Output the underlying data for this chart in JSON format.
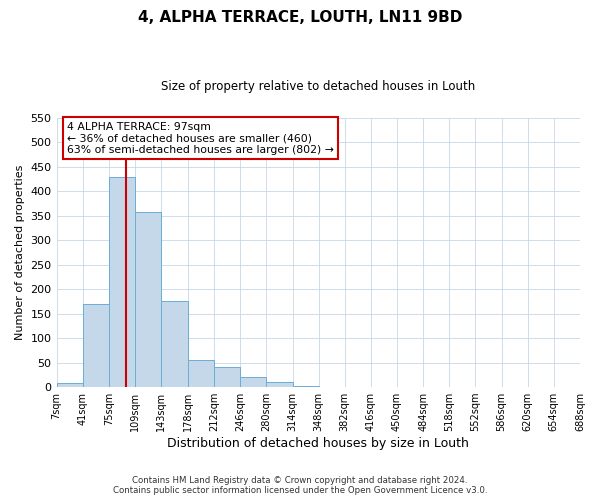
{
  "title": "4, ALPHA TERRACE, LOUTH, LN11 9BD",
  "subtitle": "Size of property relative to detached houses in Louth",
  "xlabel": "Distribution of detached houses by size in Louth",
  "ylabel": "Number of detached properties",
  "bin_edges": [
    7,
    41,
    75,
    109,
    143,
    178,
    212,
    246,
    280,
    314,
    348,
    382,
    416,
    450,
    484,
    518,
    552,
    586,
    620,
    654,
    688
  ],
  "bin_labels": [
    "7sqm",
    "41sqm",
    "75sqm",
    "109sqm",
    "143sqm",
    "178sqm",
    "212sqm",
    "246sqm",
    "280sqm",
    "314sqm",
    "348sqm",
    "382sqm",
    "416sqm",
    "450sqm",
    "484sqm",
    "518sqm",
    "552sqm",
    "586sqm",
    "620sqm",
    "654sqm",
    "688sqm"
  ],
  "counts": [
    8,
    170,
    430,
    357,
    175,
    55,
    40,
    21,
    10,
    2,
    1,
    0,
    0,
    0,
    0,
    0,
    1,
    0,
    0,
    1
  ],
  "bar_color": "#c5d8ea",
  "bar_edge_color": "#6aaed6",
  "property_line_x": 97,
  "property_line_color": "#cc0000",
  "annotation_line1": "4 ALPHA TERRACE: 97sqm",
  "annotation_line2": "← 36% of detached houses are smaller (460)",
  "annotation_line3": "63% of semi-detached houses are larger (802) →",
  "annotation_box_color": "#ffffff",
  "annotation_box_edge_color": "#cc0000",
  "ylim": [
    0,
    550
  ],
  "yticks": [
    0,
    50,
    100,
    150,
    200,
    250,
    300,
    350,
    400,
    450,
    500,
    550
  ],
  "footer_line1": "Contains HM Land Registry data © Crown copyright and database right 2024.",
  "footer_line2": "Contains public sector information licensed under the Open Government Licence v3.0.",
  "background_color": "#ffffff",
  "grid_color": "#c8d8e8"
}
